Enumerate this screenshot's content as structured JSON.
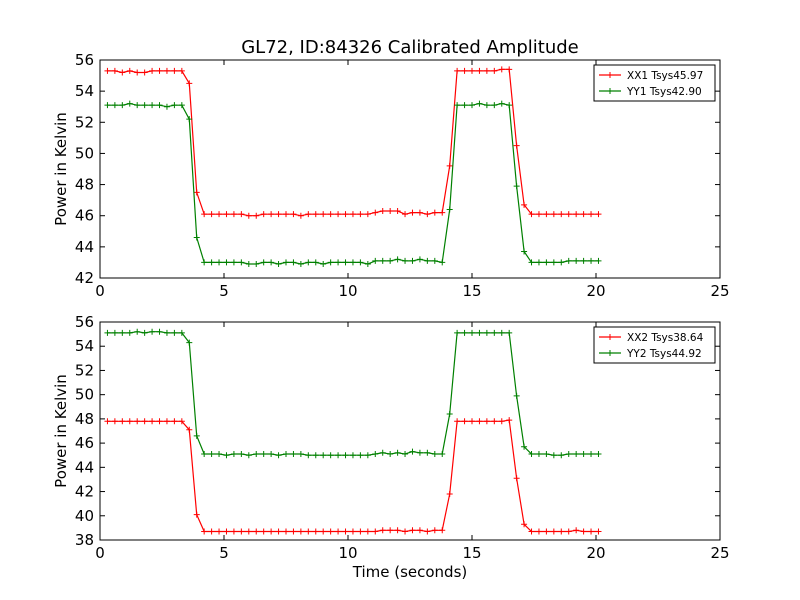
{
  "figure": {
    "title": "GL72, ID:84326 Calibrated Amplitude"
  },
  "chart_data": [
    {
      "type": "line",
      "title": "GL72, ID:84326 Calibrated Amplitude",
      "xlabel": "",
      "ylabel": "Power in Kelvin",
      "xlim": [
        0,
        25
      ],
      "ylim": [
        42,
        56
      ],
      "xticks": [
        0,
        5,
        10,
        15,
        20,
        25
      ],
      "yticks": [
        42,
        44,
        46,
        48,
        50,
        52,
        54,
        56
      ],
      "grid": false,
      "legend": "top-right",
      "x": [
        0.3,
        0.6,
        0.9,
        1.2,
        1.5,
        1.8,
        2.1,
        2.4,
        2.7,
        3.0,
        3.3,
        3.6,
        3.9,
        4.2,
        4.5,
        4.8,
        5.1,
        5.4,
        5.7,
        6.0,
        6.3,
        6.6,
        6.9,
        7.2,
        7.5,
        7.8,
        8.1,
        8.4,
        8.7,
        9.0,
        9.3,
        9.6,
        9.9,
        10.2,
        10.5,
        10.8,
        11.1,
        11.4,
        11.7,
        12.0,
        12.3,
        12.6,
        12.9,
        13.2,
        13.5,
        13.8,
        14.1,
        14.4,
        14.7,
        15.0,
        15.3,
        15.6,
        15.9,
        16.2,
        16.5,
        16.8,
        17.1,
        17.4,
        17.7,
        18.0,
        18.3,
        18.6,
        18.9,
        19.2,
        19.5,
        19.8,
        20.1
      ],
      "series": [
        {
          "name": "XX1 Tsys45.97",
          "color": "#ff0000",
          "values": [
            55.3,
            55.3,
            55.2,
            55.3,
            55.2,
            55.2,
            55.3,
            55.3,
            55.3,
            55.3,
            55.3,
            54.5,
            47.5,
            46.1,
            46.1,
            46.1,
            46.1,
            46.1,
            46.1,
            46.0,
            46.0,
            46.1,
            46.1,
            46.1,
            46.1,
            46.1,
            46.0,
            46.1,
            46.1,
            46.1,
            46.1,
            46.1,
            46.1,
            46.1,
            46.1,
            46.1,
            46.2,
            46.3,
            46.3,
            46.3,
            46.1,
            46.2,
            46.2,
            46.1,
            46.2,
            46.2,
            49.2,
            55.3,
            55.3,
            55.3,
            55.3,
            55.3,
            55.3,
            55.4,
            55.4,
            50.5,
            46.7,
            46.1,
            46.1,
            46.1,
            46.1,
            46.1,
            46.1,
            46.1,
            46.1,
            46.1,
            46.1
          ]
        },
        {
          "name": "YY1 Tsys42.90",
          "color": "#008000",
          "values": [
            53.1,
            53.1,
            53.1,
            53.2,
            53.1,
            53.1,
            53.1,
            53.1,
            53.0,
            53.1,
            53.1,
            52.2,
            44.6,
            43.0,
            43.0,
            43.0,
            43.0,
            43.0,
            43.0,
            42.9,
            42.9,
            43.0,
            43.0,
            42.9,
            43.0,
            43.0,
            42.9,
            43.0,
            43.0,
            42.9,
            43.0,
            43.0,
            43.0,
            43.0,
            43.0,
            42.9,
            43.1,
            43.1,
            43.1,
            43.2,
            43.1,
            43.1,
            43.2,
            43.1,
            43.1,
            43.0,
            46.4,
            53.1,
            53.1,
            53.1,
            53.2,
            53.1,
            53.1,
            53.2,
            53.1,
            47.9,
            43.7,
            43.0,
            43.0,
            43.0,
            43.0,
            43.0,
            43.1,
            43.1,
            43.1,
            43.1,
            43.1
          ]
        }
      ]
    },
    {
      "type": "line",
      "title": "",
      "xlabel": "Time (seconds)",
      "ylabel": "Power in Kelvin",
      "xlim": [
        0,
        25
      ],
      "ylim": [
        38,
        56
      ],
      "xticks": [
        0,
        5,
        10,
        15,
        20,
        25
      ],
      "yticks": [
        38,
        40,
        42,
        44,
        46,
        48,
        50,
        52,
        54,
        56
      ],
      "grid": false,
      "legend": "top-right",
      "x": [
        0.3,
        0.6,
        0.9,
        1.2,
        1.5,
        1.8,
        2.1,
        2.4,
        2.7,
        3.0,
        3.3,
        3.6,
        3.9,
        4.2,
        4.5,
        4.8,
        5.1,
        5.4,
        5.7,
        6.0,
        6.3,
        6.6,
        6.9,
        7.2,
        7.5,
        7.8,
        8.1,
        8.4,
        8.7,
        9.0,
        9.3,
        9.6,
        9.9,
        10.2,
        10.5,
        10.8,
        11.1,
        11.4,
        11.7,
        12.0,
        12.3,
        12.6,
        12.9,
        13.2,
        13.5,
        13.8,
        14.1,
        14.4,
        14.7,
        15.0,
        15.3,
        15.6,
        15.9,
        16.2,
        16.5,
        16.8,
        17.1,
        17.4,
        17.7,
        18.0,
        18.3,
        18.6,
        18.9,
        19.2,
        19.5,
        19.8,
        20.1
      ],
      "series": [
        {
          "name": "XX2 Tsys38.64",
          "color": "#ff0000",
          "values": [
            47.8,
            47.8,
            47.8,
            47.8,
            47.8,
            47.8,
            47.8,
            47.8,
            47.8,
            47.8,
            47.8,
            47.1,
            40.1,
            38.7,
            38.7,
            38.7,
            38.7,
            38.7,
            38.7,
            38.7,
            38.7,
            38.7,
            38.7,
            38.7,
            38.7,
            38.7,
            38.7,
            38.7,
            38.7,
            38.7,
            38.7,
            38.7,
            38.7,
            38.7,
            38.7,
            38.7,
            38.7,
            38.8,
            38.8,
            38.8,
            38.7,
            38.8,
            38.8,
            38.7,
            38.8,
            38.8,
            41.8,
            47.8,
            47.8,
            47.8,
            47.8,
            47.8,
            47.8,
            47.8,
            47.9,
            43.1,
            39.3,
            38.7,
            38.7,
            38.7,
            38.7,
            38.7,
            38.7,
            38.8,
            38.7,
            38.7,
            38.7
          ]
        },
        {
          "name": "YY2 Tsys44.92",
          "color": "#008000",
          "values": [
            55.1,
            55.1,
            55.1,
            55.1,
            55.2,
            55.1,
            55.2,
            55.2,
            55.1,
            55.1,
            55.1,
            54.3,
            46.6,
            45.1,
            45.1,
            45.1,
            45.0,
            45.1,
            45.1,
            45.0,
            45.1,
            45.1,
            45.1,
            45.0,
            45.1,
            45.1,
            45.1,
            45.0,
            45.0,
            45.0,
            45.0,
            45.0,
            45.0,
            45.0,
            45.0,
            45.0,
            45.1,
            45.2,
            45.1,
            45.2,
            45.1,
            45.3,
            45.2,
            45.2,
            45.1,
            45.1,
            48.4,
            55.1,
            55.1,
            55.1,
            55.1,
            55.1,
            55.1,
            55.1,
            55.1,
            49.9,
            45.7,
            45.1,
            45.1,
            45.1,
            45.0,
            45.0,
            45.1,
            45.1,
            45.1,
            45.1,
            45.1
          ]
        }
      ]
    }
  ]
}
